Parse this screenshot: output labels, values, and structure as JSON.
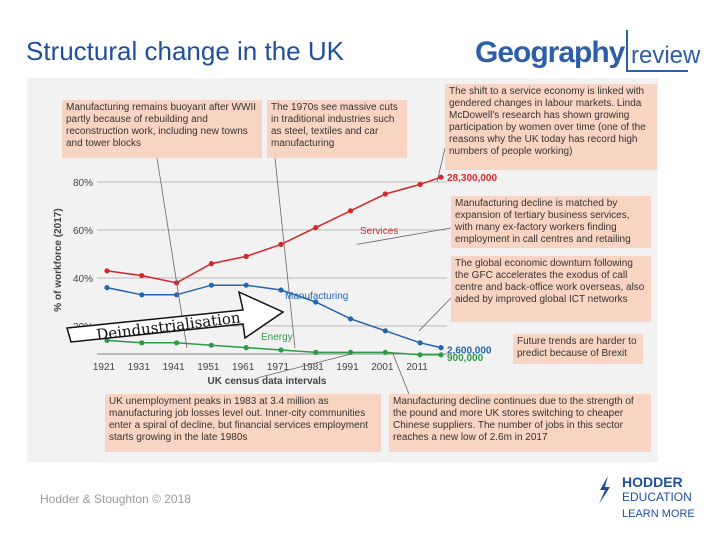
{
  "header": {
    "title": "Structural change in the UK",
    "brand_main": "Geography",
    "brand_sub": "review"
  },
  "footer": {
    "copyright": "Hodder & Stoughton © 2018",
    "publisher_line1": "HODDER",
    "publisher_line2": "EDUCATION",
    "publisher_tagline": "LEARN MORE"
  },
  "overlay": {
    "deindustrialisation_label": "Deindustrialisation"
  },
  "notes": {
    "post_war": "Manufacturing remains buoyant after WWII partly because of rebuilding and reconstruction work, including new towns and tower blocks",
    "seventies": "The 1970s see massive cuts in traditional industries such as steel, textiles and car manufacturing",
    "service_shift": "The shift to a service economy is linked with gendered changes in labour markets. Linda McDowell's research has shown growing participation by women over time (one of the reasons why the UK today has record high numbers of people working)",
    "tertiary": "Manufacturing decline is matched by expansion of tertiary business services, with many ex-factory workers finding employment in call centres and retailing",
    "gfc": "The global economic downturn following the GFC accelerates the exodus of call centre and back-office work overseas, also aided by improved global ICT networks",
    "brexit": "Future trends are harder to predict because of Brexit",
    "unemployment": "UK unemployment peaks in 1983 at 3.4 million as manufacturing job losses level out. Inner-city communities enter a spiral of decline, but financial services employment starts growing in the late 1980s",
    "pound": "Manufacturing decline continues due to the strength of the pound and more UK stores switching to cheaper Chinese suppliers. The number of jobs in this sector reaches a new low of 2.6m in 2017"
  },
  "colors": {
    "services": "#d7262b",
    "manufacturing": "#2266b0",
    "energy": "#2f9a46",
    "note_bg": "#f8d5c2",
    "title": "#1f4e9a"
  },
  "chart_data": {
    "type": "line",
    "xlabel": "UK census data intervals",
    "ylabel": "% of workforce (2017)",
    "x": [
      "1921",
      "1931",
      "1941",
      "1951",
      "1961",
      "1971",
      "1981",
      "1991",
      "2001",
      "2011",
      "2017"
    ],
    "yticks": [
      "20%",
      "40%",
      "60%",
      "80%"
    ],
    "ylim": [
      10,
      85
    ],
    "series": [
      {
        "name": "Services",
        "values": [
          43,
          41,
          38,
          46,
          49,
          54,
          61,
          68,
          75,
          79,
          82
        ],
        "end_label": "28,300,000"
      },
      {
        "name": "Manufacturing",
        "values": [
          36,
          33,
          33,
          37,
          37,
          35,
          30,
          23,
          18,
          13,
          11
        ],
        "end_label": "2,600,000"
      },
      {
        "name": "Energy",
        "values": [
          14,
          13,
          13,
          12,
          11,
          10,
          9,
          9,
          9,
          8,
          8
        ],
        "end_label": "900,000"
      }
    ]
  }
}
